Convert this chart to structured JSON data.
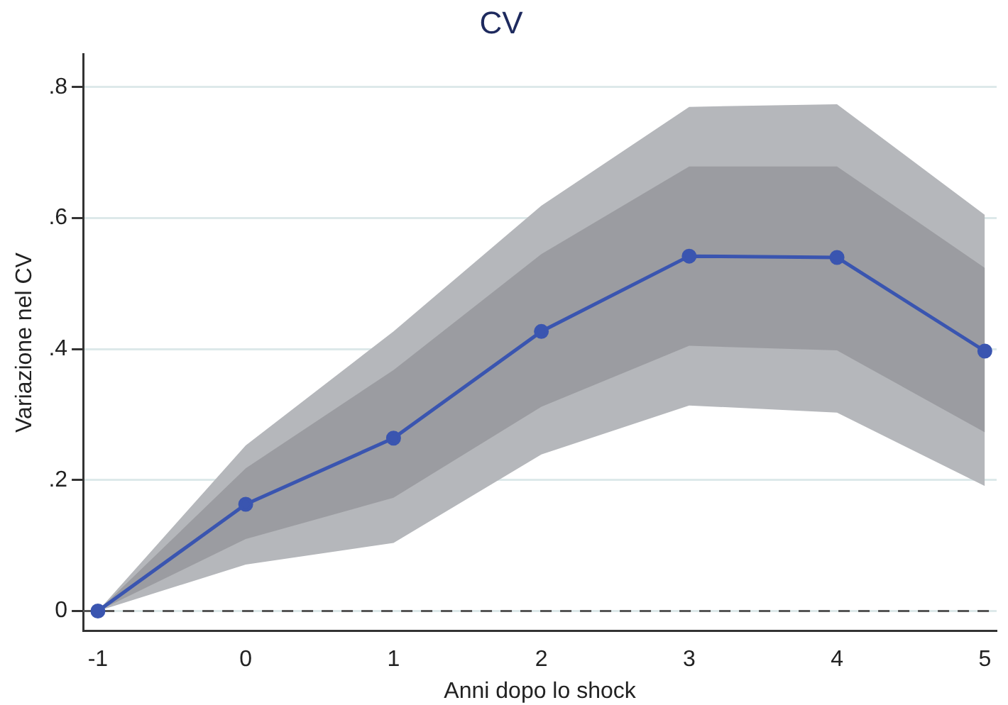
{
  "chart_data": {
    "type": "line",
    "title": "CV",
    "xlabel": "Anni dopo lo shock",
    "ylabel": "Variazione nel CV",
    "x": [
      -1,
      0,
      1,
      2,
      3,
      4,
      5
    ],
    "series": [
      {
        "color": "#b5b7bb",
        "values": [
          null,
          null,
          null,
          null,
          null,
          null,
          null
        ],
        "lower": [
          0,
          0.071,
          0.104,
          0.239,
          0.314,
          0.303,
          0.191
        ],
        "upper": [
          0,
          0.253,
          0.427,
          0.619,
          0.77,
          0.774,
          0.605
        ]
      },
      {
        "color": "#3a55b0",
        "values": [
          0,
          0.163,
          0.264,
          0.427,
          0.542,
          0.54,
          0.397
        ],
        "lower": [
          0,
          0.11,
          0.173,
          0.312,
          0.405,
          0.398,
          0.273
        ],
        "upper": [
          0,
          0.218,
          0.368,
          0.545,
          0.679,
          0.679,
          0.524
        ]
      }
    ],
    "xlim": [
      -1.1,
      5.08
    ],
    "xticks": [
      -1,
      0,
      1,
      2,
      3,
      4,
      5
    ],
    "ylim": [
      -0.03,
      0.85
    ],
    "yticks": [
      {
        "value": 0,
        "label": "0"
      },
      {
        "value": 0.2,
        "label": ".2"
      },
      {
        "value": 0.4,
        "label": ".4"
      },
      {
        "value": 0.6,
        "label": ".6"
      },
      {
        "value": 0.8,
        "label": ".8"
      }
    ],
    "ref_lines": [
      {
        "axis": "y",
        "value": 0,
        "color": "#555555",
        "line_style": "dashed"
      }
    ],
    "grid": "y",
    "legend": false,
    "marker": "circle",
    "line_style": "solid"
  }
}
